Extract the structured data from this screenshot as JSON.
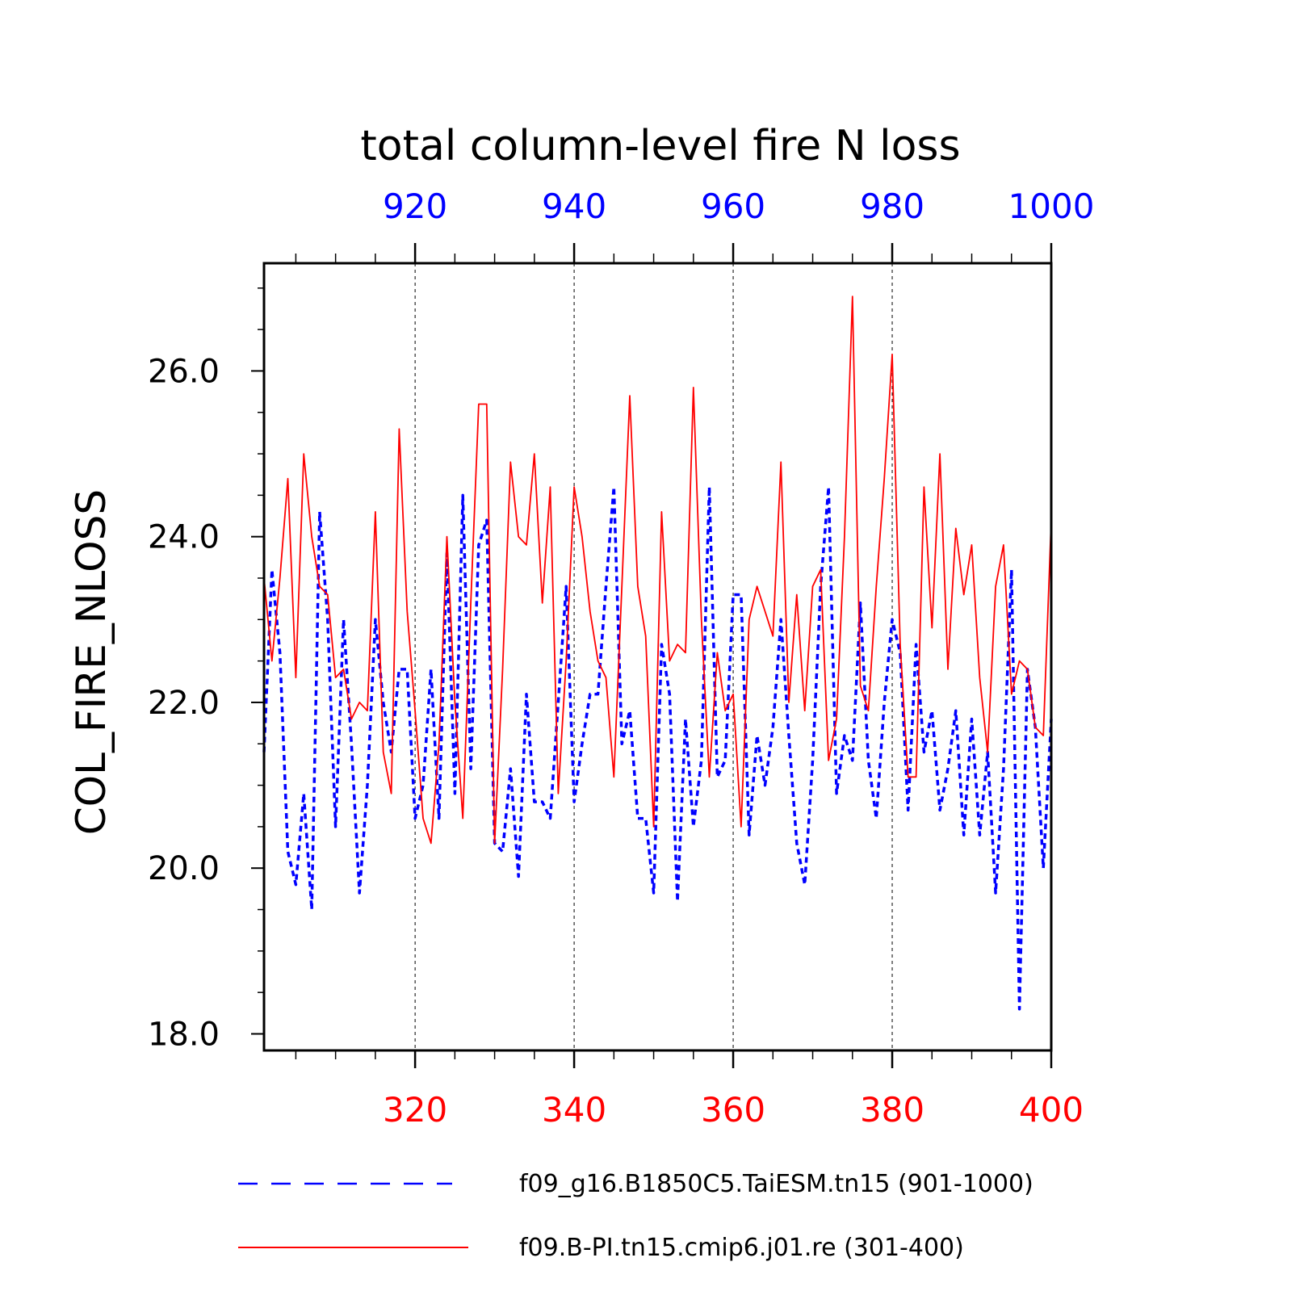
{
  "chart_data": {
    "type": "line",
    "title": "total column-level fire N loss",
    "ylabel": "COL_FIRE_NLOSS",
    "ylim": [
      17.8,
      27.3
    ],
    "yticks": [
      18.0,
      20.0,
      22.0,
      24.0,
      26.0
    ],
    "ytick_labels": [
      "18.0",
      "20.0",
      "22.0",
      "24.0",
      "26.0"
    ],
    "x_bottom": {
      "range": [
        301,
        400
      ],
      "ticks": [
        320,
        340,
        360,
        380,
        400
      ],
      "tick_labels": [
        "320",
        "340",
        "360",
        "380",
        "400"
      ],
      "color": "#ff0000"
    },
    "x_top": {
      "range": [
        901,
        1000
      ],
      "ticks": [
        920,
        940,
        960,
        980,
        1000
      ],
      "tick_labels": [
        "920",
        "940",
        "960",
        "980",
        "1000"
      ],
      "color": "#0000ff"
    },
    "grid": "vertical dashed at major ticks",
    "legend_position": "bottom",
    "series": [
      {
        "name": "f09_g16.B1850C5.TaiESM.tn15 (901-1000)",
        "color": "#0000ff",
        "style": "dashed",
        "x_start": 901,
        "values": [
          21.4,
          23.6,
          22.6,
          20.2,
          19.8,
          20.9,
          19.5,
          24.3,
          23.0,
          20.5,
          23.0,
          21.5,
          19.7,
          21.0,
          23.0,
          22.0,
          21.4,
          22.4,
          22.4,
          20.6,
          21.0,
          22.4,
          20.6,
          23.8,
          20.9,
          24.5,
          21.2,
          23.9,
          24.2,
          20.3,
          20.2,
          21.2,
          19.9,
          22.1,
          20.8,
          20.8,
          20.6,
          22.0,
          23.4,
          20.8,
          21.5,
          22.1,
          22.1,
          23.4,
          24.6,
          21.5,
          21.9,
          20.6,
          20.6,
          19.7,
          22.7,
          22.1,
          19.6,
          21.8,
          20.5,
          21.3,
          24.6,
          21.1,
          21.3,
          23.3,
          23.3,
          20.4,
          21.6,
          21.0,
          21.7,
          23.0,
          21.6,
          20.3,
          19.8,
          21.3,
          23.4,
          24.6,
          20.9,
          21.6,
          21.3,
          23.2,
          21.3,
          20.6,
          22.0,
          23.0,
          22.6,
          20.7,
          22.7,
          21.4,
          21.9,
          20.7,
          21.2,
          21.9,
          20.4,
          21.8,
          20.4,
          21.4,
          19.7,
          21.2,
          23.6,
          18.3,
          22.4,
          21.7,
          20.0,
          21.8
        ]
      },
      {
        "name": "f09.B-PI.tn15.cmip6.j01.re (301-400)",
        "color": "#ff0000",
        "style": "solid",
        "x_start": 301,
        "values": [
          23.5,
          22.5,
          23.5,
          24.7,
          22.3,
          25.0,
          24.0,
          23.4,
          23.3,
          22.3,
          22.4,
          21.8,
          22.0,
          21.9,
          24.3,
          21.4,
          20.9,
          25.3,
          23.1,
          21.9,
          20.6,
          20.3,
          21.5,
          24.0,
          22.0,
          20.6,
          23.2,
          25.6,
          25.6,
          20.3,
          22.4,
          24.9,
          24.0,
          23.9,
          25.0,
          23.2,
          24.6,
          20.9,
          22.5,
          24.6,
          24.0,
          23.1,
          22.5,
          22.3,
          21.1,
          23.4,
          25.7,
          23.4,
          22.8,
          20.5,
          24.3,
          22.5,
          22.7,
          22.6,
          25.8,
          23.0,
          21.1,
          22.6,
          21.9,
          22.1,
          20.5,
          23.0,
          23.4,
          23.1,
          22.8,
          24.9,
          22.0,
          23.3,
          21.9,
          23.4,
          23.6,
          21.3,
          21.8,
          24.0,
          26.9,
          22.2,
          21.9,
          23.4,
          24.7,
          26.2,
          22.7,
          21.1,
          21.1,
          24.6,
          22.9,
          25.0,
          22.4,
          24.1,
          23.3,
          23.9,
          22.3,
          21.4,
          23.4,
          23.9,
          22.1,
          22.5,
          22.4,
          21.7,
          21.6,
          24.2
        ]
      }
    ]
  }
}
